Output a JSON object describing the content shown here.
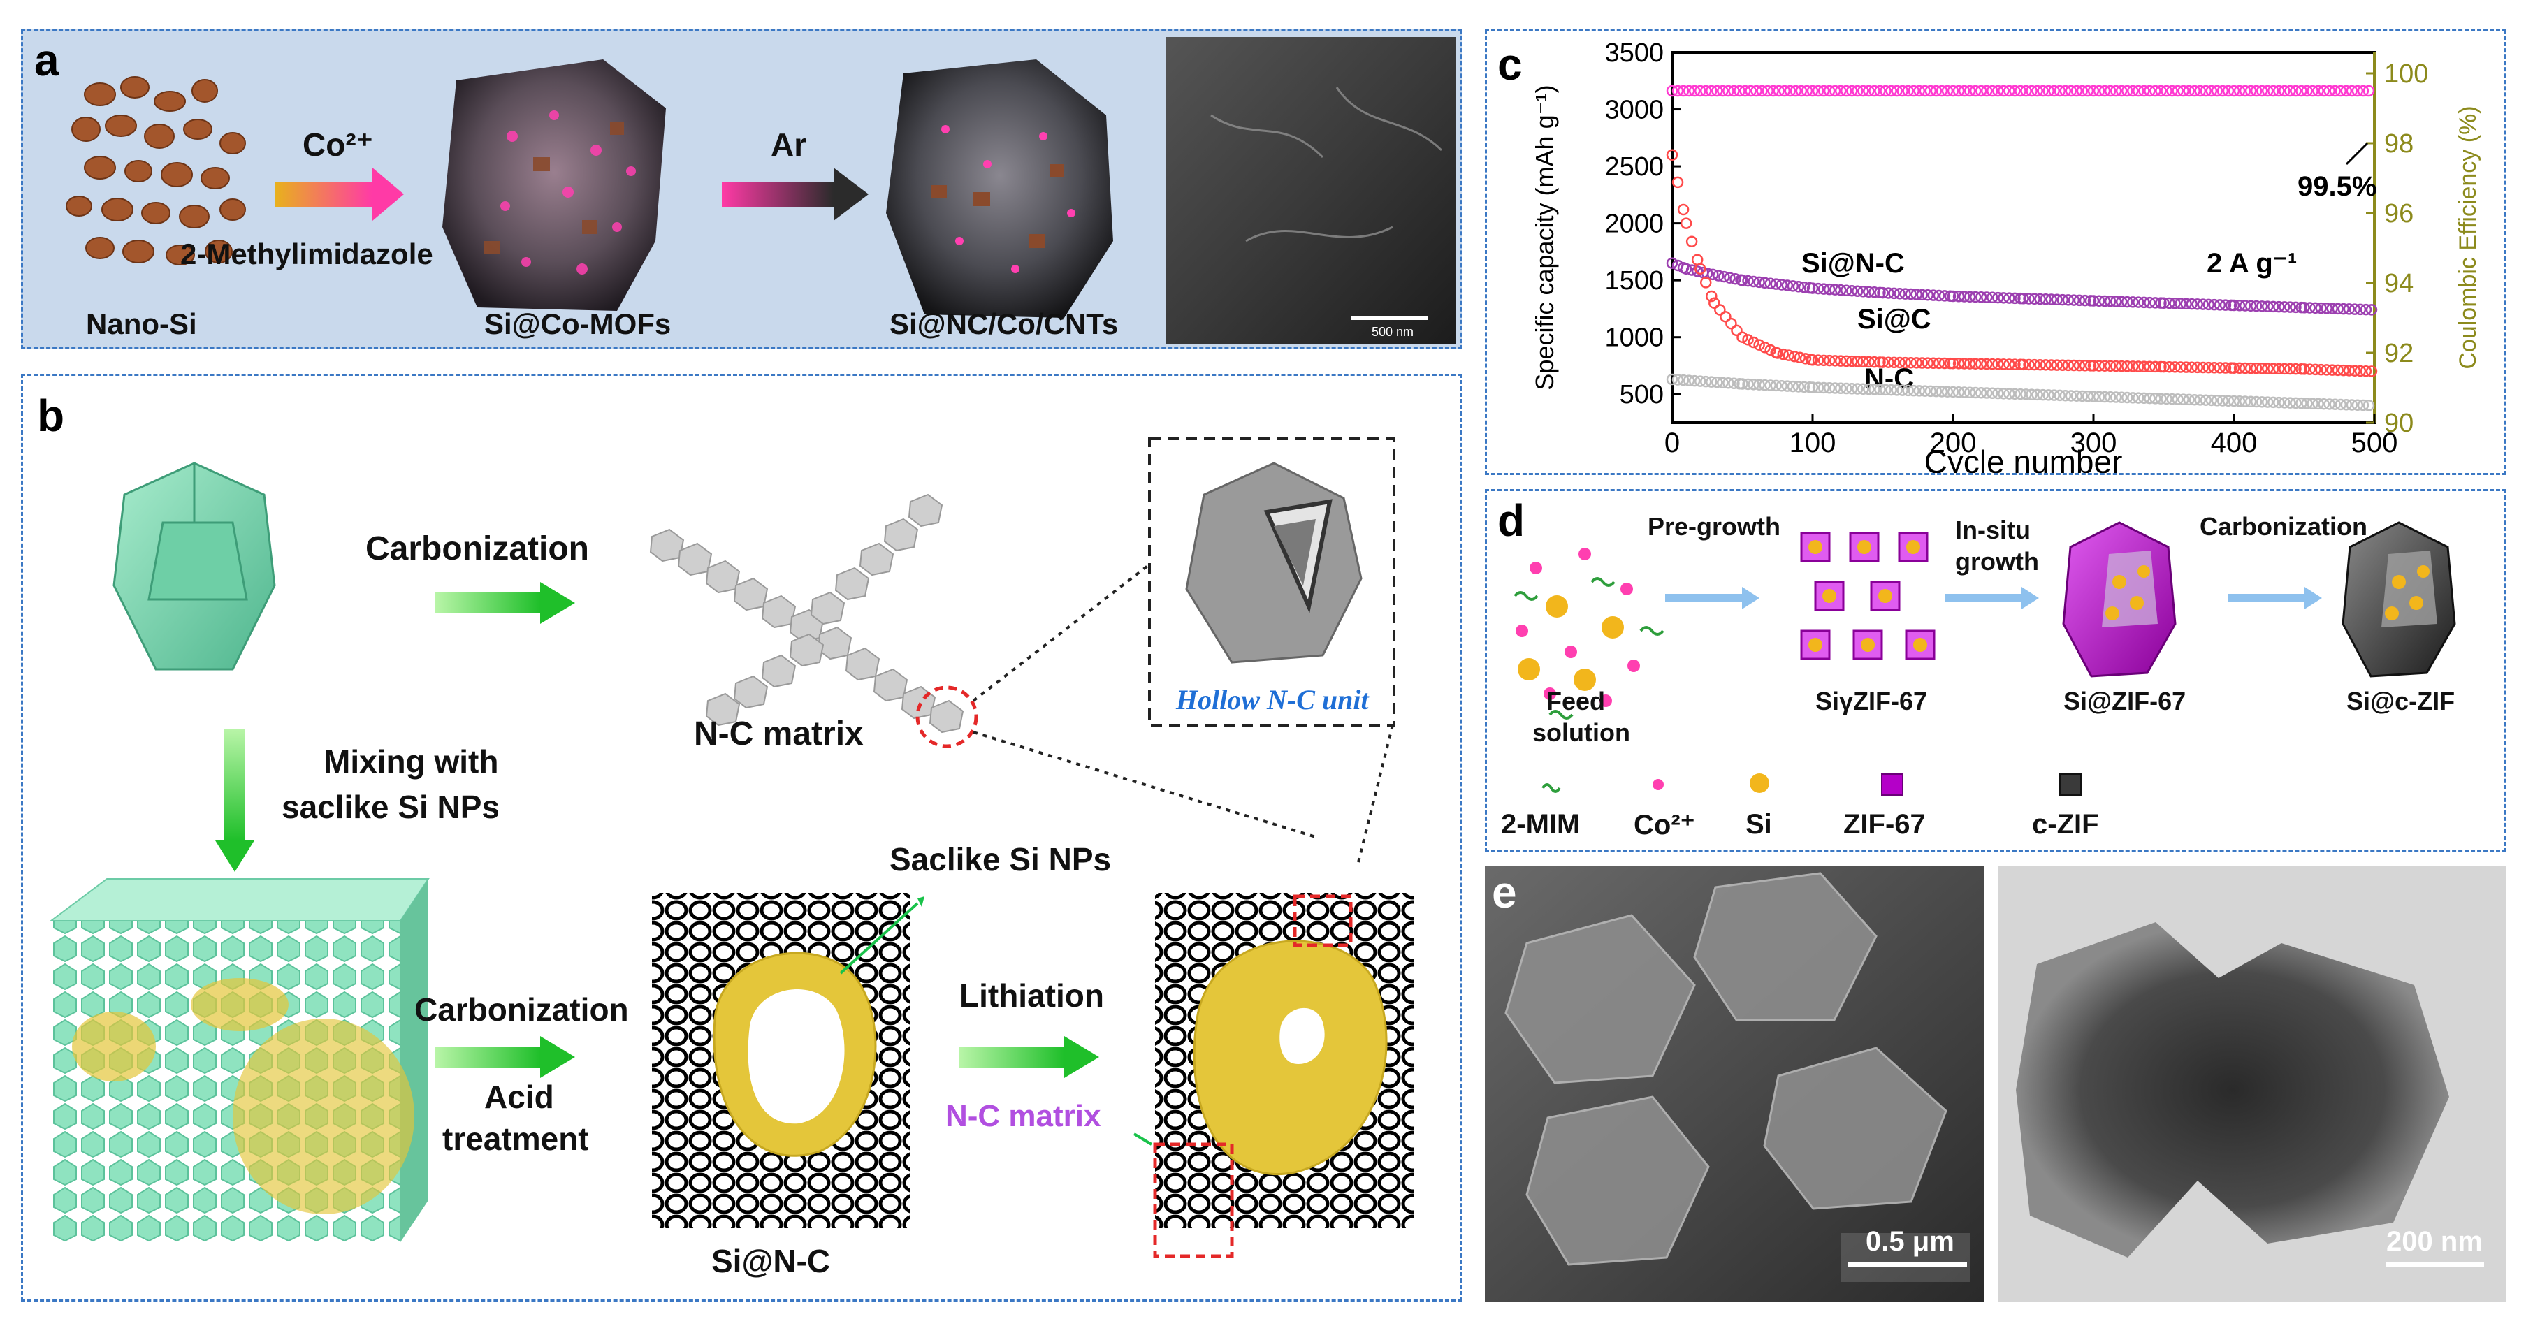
{
  "panel_a": {
    "label": "a",
    "co_label": "Co²⁺",
    "ar_label": "Ar",
    "ligand_label": "2-Methylimidazole",
    "nano_si_label": "Nano-Si",
    "mof_label": "Si@Co-MOFs",
    "product_label": "Si@NC/Co/CNTs",
    "scale_text": "500 nm",
    "colors": {
      "background": "#c9d9ec",
      "particle": "#a3562c",
      "arrow1": "#ff3aa6",
      "arrow2": "#2b2b2b"
    }
  },
  "panel_b": {
    "label": "b",
    "carbonization_label": "Carbonization",
    "nc_matrix_label": "N-C matrix",
    "hollow_unit_label": "Hollow N-C unit",
    "mixing_label_line1": "Mixing with",
    "mixing_label_line2": "saclike Si NPs",
    "carbonization2_label": "Carbonization",
    "acid_label_line1": "Acid",
    "acid_label_line2": "treatment",
    "saclike_label": "Saclike Si NPs",
    "lithiation_label": "Lithiation",
    "nc_matrix2_label": "N-C matrix",
    "sinc_label": "Si@N-C",
    "colors": {
      "arrow": "#37d12c",
      "crystal": "#7ed6b5",
      "shell": "#e4c63a",
      "hollow_text": "#1f6fd6",
      "nc_text": "#b14fe0"
    }
  },
  "panel_c": {
    "label": "c",
    "annotations": {
      "sinc": "Si@N-C",
      "sic": "Si@C",
      "nc": "N-C",
      "rate": "2 A g⁻¹",
      "ce": "99.5%"
    },
    "colors": {
      "ce": "#ff3ad1",
      "sinc": "#9c3fb0",
      "sic": "#ff4a4a",
      "nc": "#bdbdbd",
      "right_axis": "#8c8a1c"
    }
  },
  "chart_data": {
    "type": "scatter",
    "xlabel": "Cycle number",
    "ylabel": "Specific capacity (mAh g⁻¹)",
    "y2label": "Coulombic Efficiency (%)",
    "xlim": [
      0,
      500
    ],
    "ylim": [
      250,
      3500
    ],
    "y2lim": [
      90,
      100.6
    ],
    "xticks": [
      0,
      100,
      200,
      300,
      400,
      500
    ],
    "yticks": [
      500,
      1000,
      1500,
      2000,
      2500,
      3000,
      3500
    ],
    "y2ticks": [
      90,
      92,
      94,
      96,
      98,
      100
    ],
    "series": [
      {
        "name": "Si@N-C",
        "axis": "left",
        "x": [
          0,
          10,
          25,
          50,
          100,
          150,
          200,
          250,
          300,
          350,
          400,
          450,
          500
        ],
        "values": [
          1650,
          1600,
          1560,
          1500,
          1430,
          1390,
          1360,
          1340,
          1320,
          1300,
          1280,
          1260,
          1240
        ]
      },
      {
        "name": "Si@C",
        "axis": "left",
        "x": [
          0,
          10,
          20,
          30,
          50,
          75,
          100,
          150,
          200,
          250,
          300,
          350,
          400,
          450,
          500
        ],
        "values": [
          2600,
          2000,
          1600,
          1300,
          1000,
          860,
          800,
          780,
          770,
          760,
          750,
          740,
          730,
          720,
          700
        ]
      },
      {
        "name": "N-C",
        "axis": "left",
        "x": [
          0,
          50,
          100,
          200,
          300,
          400,
          500
        ],
        "values": [
          630,
          590,
          560,
          520,
          480,
          440,
          400
        ]
      },
      {
        "name": "Coulombic Efficiency",
        "axis": "right",
        "x": [
          0,
          100,
          200,
          300,
          400,
          500
        ],
        "values": [
          99.5,
          99.5,
          99.5,
          99.5,
          99.5,
          99.5
        ]
      }
    ]
  },
  "panel_d": {
    "label": "d",
    "step1": "Pre-growth",
    "step2_line1": "In-situ",
    "step2_line2": "growth",
    "step3": "Carbonization",
    "feed_line1": "Feed",
    "feed_line2": "solution",
    "si_zif_label": "SiγZIF-67",
    "si_at_zif_label": "Si@ZIF-67",
    "si_czif_label": "Si@c-ZIF",
    "legend": {
      "mim": "2-MIM",
      "co": "Co²⁺",
      "si": "Si",
      "zif": "ZIF-67",
      "czif": "c-ZIF"
    },
    "colors": {
      "zif": "#b400c8",
      "czif": "#3a3a3a",
      "si": "#f2b61c",
      "co": "#ff3fb0",
      "mim": "#2e9e3c",
      "arrow": "#8ec1ee"
    }
  },
  "panel_e": {
    "label": "e",
    "scale1": "0.5 μm",
    "scale2": "200 nm"
  }
}
